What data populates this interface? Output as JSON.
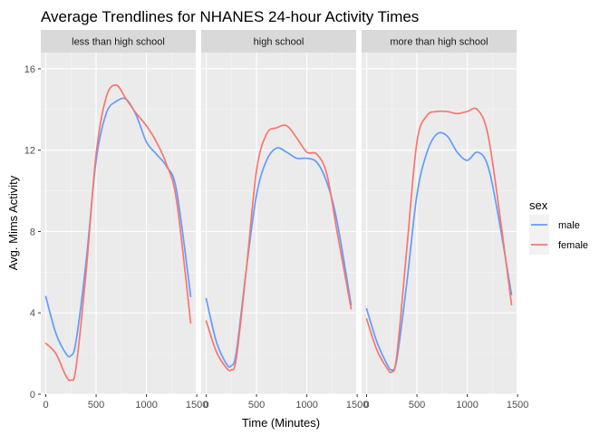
{
  "chart_data": {
    "type": "line",
    "title": "Average Trendlines for NHANES 24-hour Activity Times",
    "xlabel": "Time (Minutes)",
    "ylabel": "Avg. Mims Activity",
    "xlim": [
      -50,
      1490
    ],
    "ylim": [
      0,
      16.8
    ],
    "x_ticks": [
      0,
      500,
      1000,
      1500
    ],
    "x_tick_labels": [
      "0",
      "500",
      "1000",
      "1500"
    ],
    "y_ticks": [
      0,
      4,
      8,
      12,
      16
    ],
    "y_tick_labels": [
      "0",
      "4",
      "8",
      "12",
      "16"
    ],
    "grid": true,
    "legend": {
      "title": "sex",
      "position": "right",
      "entries": [
        {
          "label": "male",
          "color": "#619CFF"
        },
        {
          "label": "female",
          "color": "#F8766D"
        }
      ]
    },
    "facets": [
      {
        "label": "less than high school",
        "series": [
          {
            "name": "male",
            "color": "#619CFF",
            "x": [
              0,
              100,
              200,
              250,
              300,
              400,
              500,
              600,
              700,
              800,
              900,
              1000,
              1100,
              1200,
              1300,
              1440
            ],
            "values": [
              4.8,
              3.0,
              2.0,
              1.9,
              2.6,
              6.5,
              11.5,
              13.8,
              14.4,
              14.5,
              13.7,
              12.4,
              11.8,
              11.2,
              10.0,
              4.8
            ]
          },
          {
            "name": "female",
            "color": "#F8766D",
            "x": [
              0,
              100,
              200,
              250,
              300,
              400,
              500,
              600,
              700,
              800,
              900,
              1000,
              1100,
              1200,
              1300,
              1440
            ],
            "values": [
              2.5,
              2.0,
              0.9,
              0.7,
              1.3,
              6.0,
              11.8,
              14.6,
              15.2,
              14.5,
              13.8,
              13.2,
              12.4,
              11.3,
              9.5,
              3.5
            ]
          }
        ]
      },
      {
        "label": "high school",
        "series": [
          {
            "name": "male",
            "color": "#619CFF",
            "x": [
              0,
              100,
              200,
              250,
              300,
              400,
              500,
              600,
              700,
              800,
              900,
              1000,
              1100,
              1200,
              1300,
              1440
            ],
            "values": [
              4.7,
              2.6,
              1.5,
              1.4,
              2.1,
              6.2,
              9.8,
              11.5,
              12.1,
              11.9,
              11.6,
              11.6,
              11.4,
              10.4,
              8.5,
              4.4
            ]
          },
          {
            "name": "female",
            "color": "#F8766D",
            "x": [
              0,
              100,
              200,
              250,
              300,
              400,
              500,
              600,
              700,
              800,
              900,
              1000,
              1100,
              1200,
              1300,
              1440
            ],
            "values": [
              3.6,
              2.1,
              1.3,
              1.2,
              1.8,
              6.2,
              11.0,
              12.8,
              13.1,
              13.2,
              12.6,
              11.9,
              11.8,
              10.8,
              8.0,
              4.2
            ]
          }
        ]
      },
      {
        "label": "more than high school",
        "series": [
          {
            "name": "male",
            "color": "#619CFF",
            "x": [
              0,
              100,
              200,
              250,
              300,
              400,
              500,
              600,
              700,
              800,
              900,
              1000,
              1100,
              1200,
              1300,
              1440
            ],
            "values": [
              4.2,
              2.6,
              1.5,
              1.2,
              1.7,
              5.5,
              9.8,
              11.9,
              12.8,
              12.7,
              11.9,
              11.5,
              11.9,
              11.3,
              9.0,
              4.9
            ]
          },
          {
            "name": "female",
            "color": "#F8766D",
            "x": [
              0,
              100,
              200,
              250,
              300,
              400,
              500,
              600,
              700,
              800,
              900,
              1000,
              1100,
              1200,
              1300,
              1440
            ],
            "values": [
              3.7,
              2.2,
              1.3,
              1.1,
              1.9,
              7.2,
              12.4,
              13.7,
              13.9,
              13.9,
              13.8,
              13.9,
              14.0,
              12.9,
              9.7,
              4.4
            ]
          }
        ]
      }
    ]
  }
}
